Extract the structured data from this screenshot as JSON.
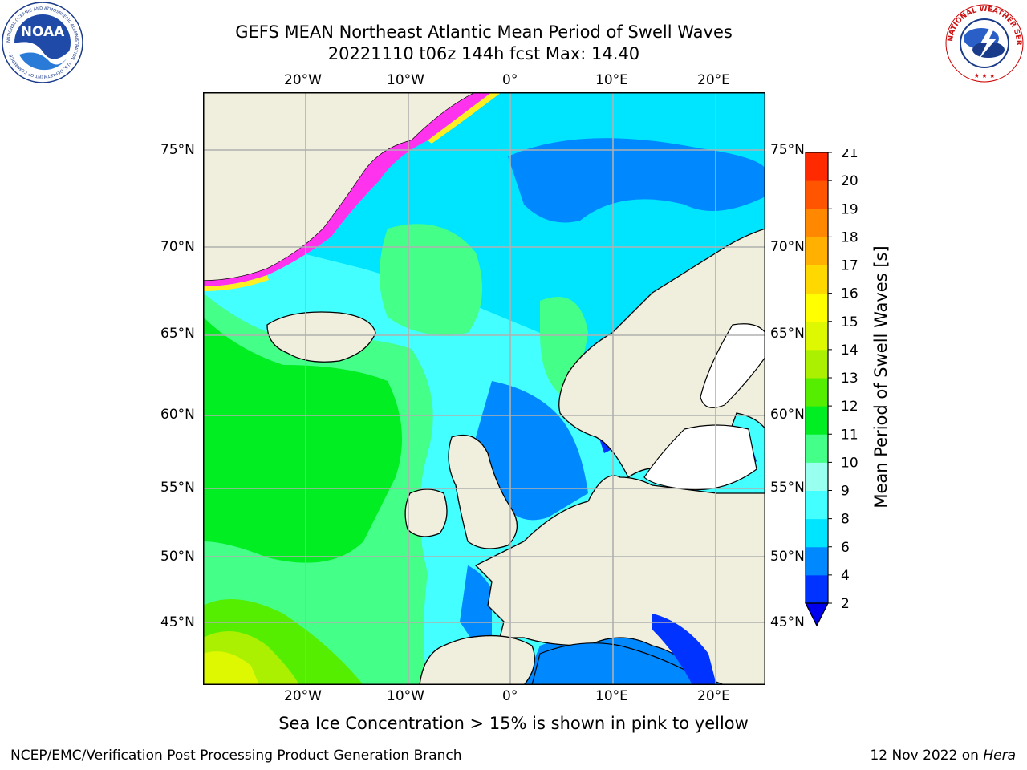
{
  "title_line1": "GEFS MEAN Northeast Atlantic Mean Period of Swell Waves",
  "title_line2": "20221110 t06z 144h fcst   Max: 14.40",
  "subtitle": "Sea Ice Concentration > 15% is shown in pink to yellow",
  "footer_left": "NCEP/EMC/Verification Post Processing Product Generation Branch",
  "footer_date": "12 Nov 2022 on ",
  "footer_machine": "Hera",
  "logos": {
    "noaa_text": "NOAA",
    "noaa_ring": "NATIONAL OCEANIC AND ATMOSPHERIC ADMINISTRATION · U.S. DEPARTMENT OF COMMERCE ·",
    "nws_ring": "NATIONAL WEATHER SERVICE"
  },
  "lon_labels": [
    "20°W",
    "10°W",
    "0°",
    "10°E",
    "20°E"
  ],
  "lat_labels": [
    "75°N",
    "70°N",
    "65°N",
    "60°N",
    "55°N",
    "50°N",
    "45°N"
  ],
  "colorbar": {
    "label": "Mean Period of Swell Waves [s]",
    "ticks": [
      "2",
      "4",
      "6",
      "8",
      "9",
      "10",
      "11",
      "12",
      "13",
      "14",
      "15",
      "16",
      "17",
      "18",
      "19",
      "20",
      "21"
    ],
    "colors": [
      "#0033ff",
      "#0088ff",
      "#00e5ff",
      "#44ffff",
      "#99ffee",
      "#44ff88",
      "#00ee22",
      "#55ee00",
      "#aaf000",
      "#ddf800",
      "#ffff00",
      "#ffd800",
      "#ffb000",
      "#ff8800",
      "#ff5500",
      "#ff2a00",
      "#ff0000"
    ],
    "extend_color": "#0000ee"
  },
  "colors": {
    "land": "#f0eedc",
    "inland": "#ffffff",
    "ice_pink": "#ff33ee",
    "ice_yellow": "#ffee22"
  },
  "chart_data": {
    "type": "heatmap",
    "variable": "Mean Period of Swell Waves [s]",
    "lon_range": [
      -30,
      25
    ],
    "lat_range": [
      41,
      78
    ],
    "max_value": 14.4,
    "scale_range": [
      2,
      21
    ],
    "grid": true
  }
}
